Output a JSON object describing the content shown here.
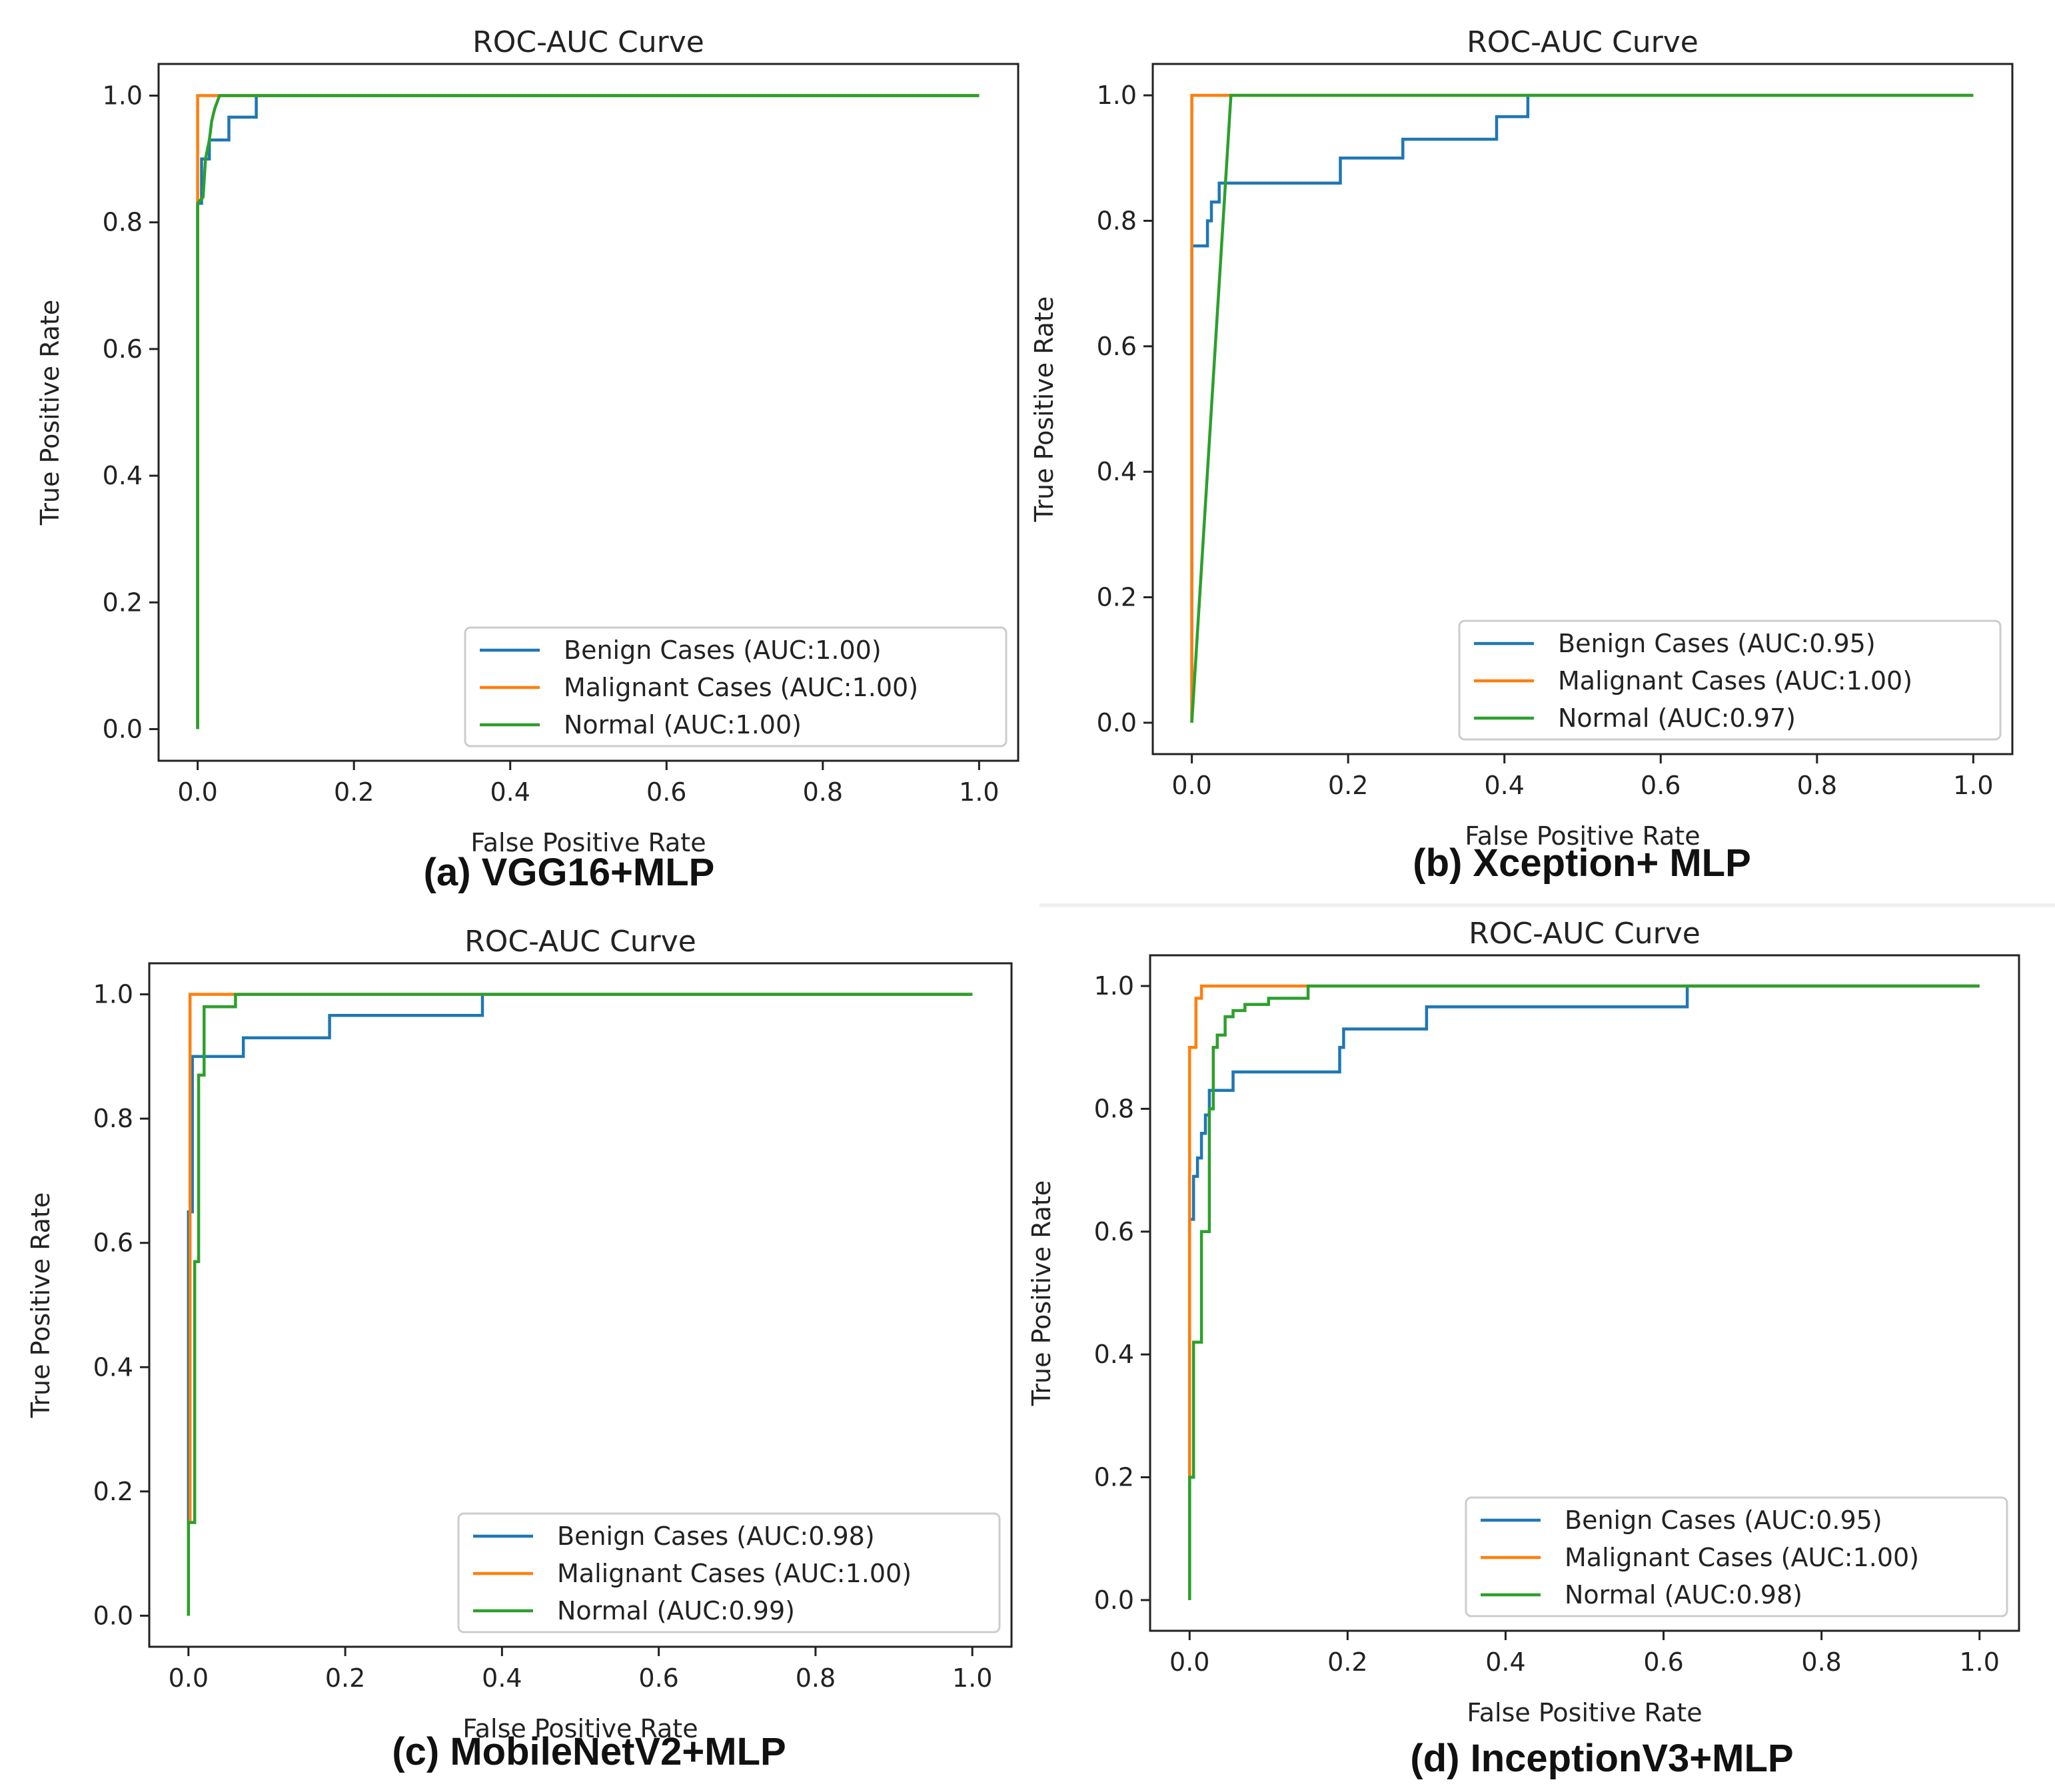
{
  "figure": {
    "panels": [
      {
        "caption": "(a) VGG16+MLP"
      },
      {
        "caption": "(b) Xception+ MLP"
      },
      {
        "caption": "(c) MobileNetV2+MLP"
      },
      {
        "caption": "(d) InceptionV3+MLP"
      }
    ]
  },
  "colors": {
    "benign": "#1f77b4",
    "malignant": "#ff7f0e",
    "normal": "#2ca02c"
  },
  "chart_data": [
    {
      "type": "line",
      "title": "ROC-AUC Curve",
      "xlabel": "False Positive Rate",
      "ylabel": "True Positive Rate",
      "xlim": [
        -0.05,
        1.05
      ],
      "ylim": [
        -0.05,
        1.05
      ],
      "xticks": [
        "0.0",
        "0.2",
        "0.4",
        "0.6",
        "0.8",
        "1.0"
      ],
      "yticks": [
        "0.0",
        "0.2",
        "0.4",
        "0.6",
        "0.8",
        "1.0"
      ],
      "grid": false,
      "legend_position": "lower-right",
      "series": [
        {
          "name": "Benign Cases (AUC:1.00)",
          "color": "#1f77b4",
          "points": [
            [
              0,
              0
            ],
            [
              0,
              0.83
            ],
            [
              0.005,
              0.83
            ],
            [
              0.005,
              0.9
            ],
            [
              0.015,
              0.9
            ],
            [
              0.015,
              0.93
            ],
            [
              0.04,
              0.93
            ],
            [
              0.04,
              0.966
            ],
            [
              0.075,
              0.966
            ],
            [
              0.075,
              1.0
            ],
            [
              1.0,
              1.0
            ]
          ]
        },
        {
          "name": "Malignant Cases (AUC:1.00)",
          "color": "#ff7f0e",
          "points": [
            [
              0,
              0
            ],
            [
              0,
              1.0
            ],
            [
              1.0,
              1.0
            ]
          ]
        },
        {
          "name": "Normal (AUC:1.00)",
          "color": "#2ca02c",
          "points": [
            [
              0,
              0
            ],
            [
              0,
              0.83
            ],
            [
              0.007,
              0.84
            ],
            [
              0.01,
              0.9
            ],
            [
              0.015,
              0.93
            ],
            [
              0.018,
              0.96
            ],
            [
              0.022,
              0.98
            ],
            [
              0.028,
              1.0
            ],
            [
              1.0,
              1.0
            ]
          ]
        }
      ]
    },
    {
      "type": "line",
      "title": "ROC-AUC Curve",
      "xlabel": "False Positive Rate",
      "ylabel": "True Positive Rate",
      "xlim": [
        -0.05,
        1.05
      ],
      "ylim": [
        -0.05,
        1.05
      ],
      "xticks": [
        "0.0",
        "0.2",
        "0.4",
        "0.6",
        "0.8",
        "1.0"
      ],
      "yticks": [
        "0.0",
        "0.2",
        "0.4",
        "0.6",
        "0.8",
        "1.0"
      ],
      "grid": false,
      "legend_position": "lower-right",
      "series": [
        {
          "name": "Benign Cases (AUC:0.95)",
          "color": "#1f77b4",
          "points": [
            [
              0,
              0
            ],
            [
              0,
              0.76
            ],
            [
              0.02,
              0.76
            ],
            [
              0.02,
              0.8
            ],
            [
              0.025,
              0.8
            ],
            [
              0.025,
              0.83
            ],
            [
              0.035,
              0.83
            ],
            [
              0.035,
              0.86
            ],
            [
              0.19,
              0.86
            ],
            [
              0.19,
              0.9
            ],
            [
              0.27,
              0.9
            ],
            [
              0.27,
              0.93
            ],
            [
              0.39,
              0.93
            ],
            [
              0.39,
              0.966
            ],
            [
              0.43,
              0.966
            ],
            [
              0.43,
              1.0
            ],
            [
              1.0,
              1.0
            ]
          ]
        },
        {
          "name": "Malignant Cases (AUC:1.00)",
          "color": "#ff7f0e",
          "points": [
            [
              0,
              0
            ],
            [
              0,
              1.0
            ],
            [
              1.0,
              1.0
            ]
          ]
        },
        {
          "name": "Normal (AUC:0.97)",
          "color": "#2ca02c",
          "points": [
            [
              0,
              0
            ],
            [
              0.05,
              1.0
            ],
            [
              1.0,
              1.0
            ]
          ]
        }
      ]
    },
    {
      "type": "line",
      "title": "ROC-AUC Curve",
      "xlabel": "False Positive Rate",
      "ylabel": "True Positive Rate",
      "xlim": [
        -0.05,
        1.05
      ],
      "ylim": [
        -0.05,
        1.05
      ],
      "xticks": [
        "0.0",
        "0.2",
        "0.4",
        "0.6",
        "0.8",
        "1.0"
      ],
      "yticks": [
        "0.0",
        "0.2",
        "0.4",
        "0.6",
        "0.8",
        "1.0"
      ],
      "grid": false,
      "legend_position": "lower-right",
      "series": [
        {
          "name": "Benign Cases (AUC:0.98)",
          "color": "#1f77b4",
          "points": [
            [
              0,
              0
            ],
            [
              0,
              0.65
            ],
            [
              0.005,
              0.65
            ],
            [
              0.005,
              0.9
            ],
            [
              0.07,
              0.9
            ],
            [
              0.07,
              0.93
            ],
            [
              0.18,
              0.93
            ],
            [
              0.18,
              0.966
            ],
            [
              0.375,
              0.966
            ],
            [
              0.375,
              1.0
            ],
            [
              1.0,
              1.0
            ]
          ]
        },
        {
          "name": "Malignant Cases (AUC:1.00)",
          "color": "#ff7f0e",
          "points": [
            [
              0,
              0
            ],
            [
              0,
              0.15
            ],
            [
              0.002,
              0.15
            ],
            [
              0.002,
              1.0
            ],
            [
              0.07,
              1.0
            ],
            [
              1.0,
              1.0
            ]
          ]
        },
        {
          "name": "Normal (AUC:0.99)",
          "color": "#2ca02c",
          "points": [
            [
              0,
              0
            ],
            [
              0,
              0.15
            ],
            [
              0.008,
              0.15
            ],
            [
              0.008,
              0.57
            ],
            [
              0.013,
              0.57
            ],
            [
              0.013,
              0.87
            ],
            [
              0.02,
              0.87
            ],
            [
              0.02,
              0.98
            ],
            [
              0.06,
              0.98
            ],
            [
              0.06,
              1.0
            ],
            [
              1.0,
              1.0
            ]
          ]
        }
      ]
    },
    {
      "type": "line",
      "title": "ROC-AUC Curve",
      "xlabel": "False Positive Rate",
      "ylabel": "True Positive Rate",
      "xlim": [
        -0.05,
        1.05
      ],
      "ylim": [
        -0.05,
        1.05
      ],
      "xticks": [
        "0.0",
        "0.2",
        "0.4",
        "0.6",
        "0.8",
        "1.0"
      ],
      "yticks": [
        "0.0",
        "0.2",
        "0.4",
        "0.6",
        "0.8",
        "1.0"
      ],
      "grid": false,
      "legend_position": "lower-right",
      "series": [
        {
          "name": "Benign Cases (AUC:0.95)",
          "color": "#1f77b4",
          "points": [
            [
              0,
              0
            ],
            [
              0,
              0.62
            ],
            [
              0.005,
              0.62
            ],
            [
              0.005,
              0.69
            ],
            [
              0.01,
              0.69
            ],
            [
              0.01,
              0.72
            ],
            [
              0.015,
              0.72
            ],
            [
              0.015,
              0.76
            ],
            [
              0.02,
              0.76
            ],
            [
              0.02,
              0.79
            ],
            [
              0.025,
              0.79
            ],
            [
              0.025,
              0.83
            ],
            [
              0.055,
              0.83
            ],
            [
              0.055,
              0.86
            ],
            [
              0.19,
              0.86
            ],
            [
              0.19,
              0.9
            ],
            [
              0.195,
              0.9
            ],
            [
              0.195,
              0.93
            ],
            [
              0.3,
              0.93
            ],
            [
              0.3,
              0.966
            ],
            [
              0.63,
              0.966
            ],
            [
              0.63,
              1.0
            ],
            [
              1.0,
              1.0
            ]
          ]
        },
        {
          "name": "Malignant Cases (AUC:1.00)",
          "color": "#ff7f0e",
          "points": [
            [
              0,
              0
            ],
            [
              0,
              0.9
            ],
            [
              0.008,
              0.9
            ],
            [
              0.008,
              0.98
            ],
            [
              0.015,
              0.98
            ],
            [
              0.015,
              1.0
            ],
            [
              0.14,
              1.0
            ],
            [
              1.0,
              1.0
            ]
          ]
        },
        {
          "name": "Normal (AUC:0.98)",
          "color": "#2ca02c",
          "points": [
            [
              0,
              0
            ],
            [
              0,
              0.2
            ],
            [
              0.005,
              0.2
            ],
            [
              0.005,
              0.42
            ],
            [
              0.015,
              0.42
            ],
            [
              0.015,
              0.6
            ],
            [
              0.025,
              0.6
            ],
            [
              0.025,
              0.8
            ],
            [
              0.03,
              0.8
            ],
            [
              0.03,
              0.9
            ],
            [
              0.035,
              0.9
            ],
            [
              0.035,
              0.92
            ],
            [
              0.045,
              0.92
            ],
            [
              0.045,
              0.95
            ],
            [
              0.055,
              0.95
            ],
            [
              0.055,
              0.96
            ],
            [
              0.07,
              0.96
            ],
            [
              0.07,
              0.97
            ],
            [
              0.1,
              0.97
            ],
            [
              0.1,
              0.98
            ],
            [
              0.15,
              0.98
            ],
            [
              0.15,
              1.0
            ],
            [
              1.0,
              1.0
            ]
          ]
        }
      ]
    }
  ]
}
